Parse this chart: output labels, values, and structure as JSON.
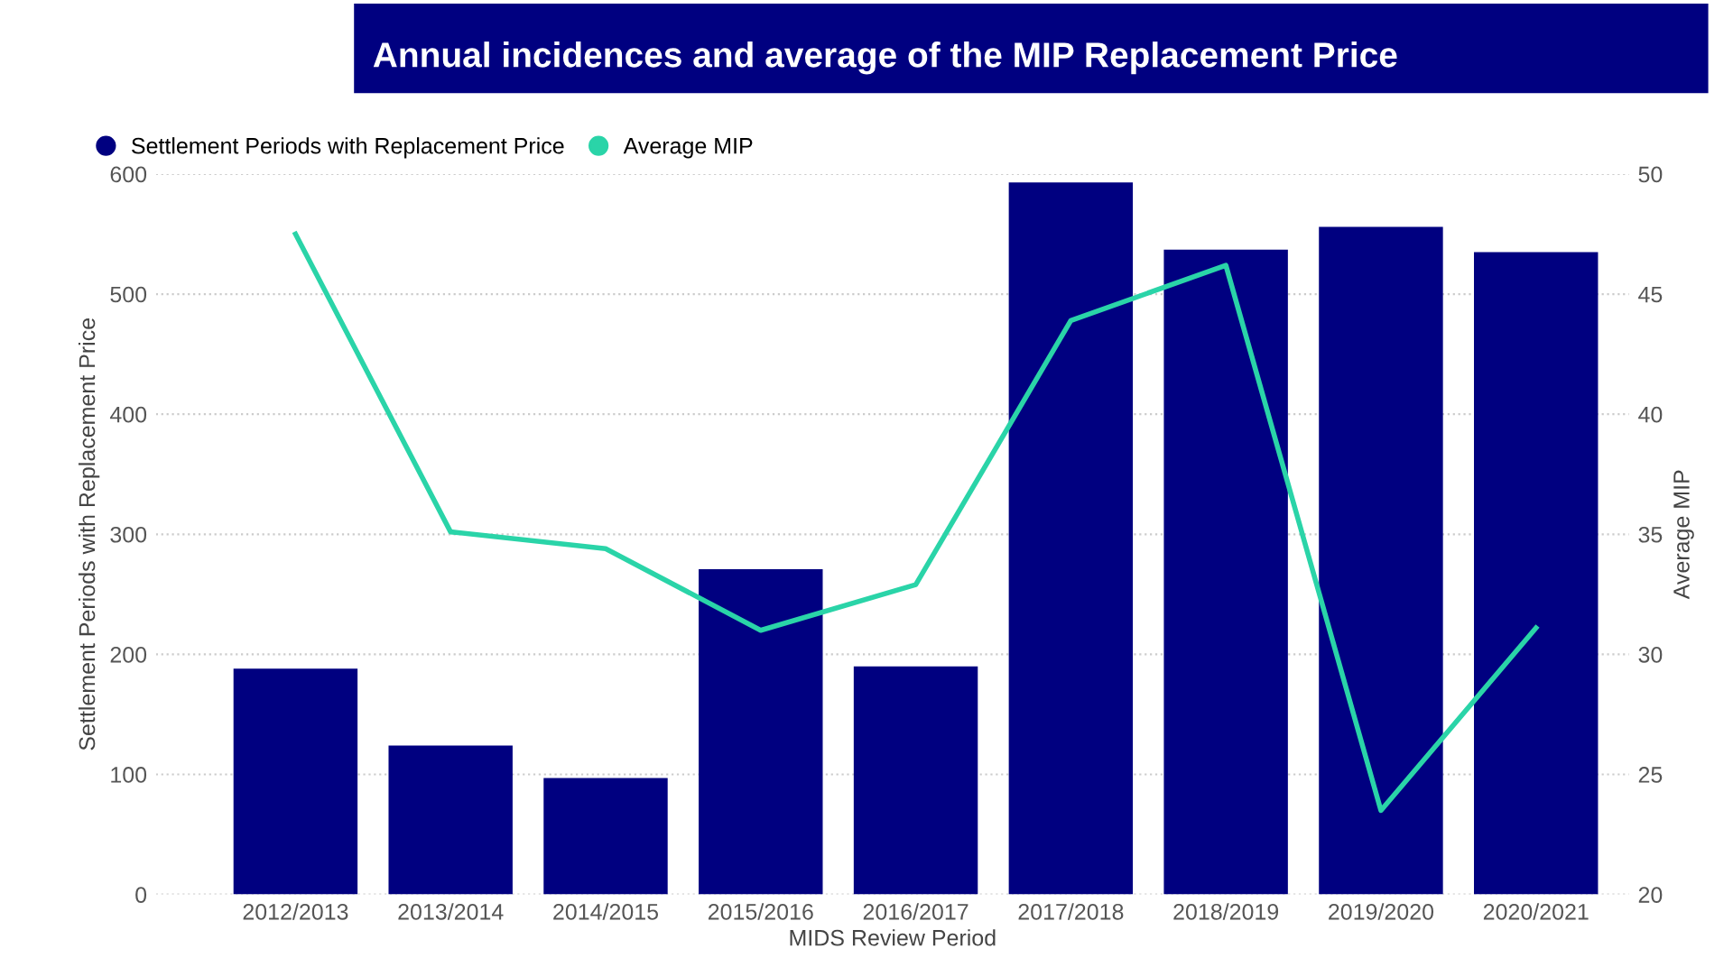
{
  "chart_data": {
    "type": "bar",
    "title": "Annual incidences and average of the MIP Replacement Price",
    "xlabel": "MIDS Review Period",
    "ylabel": "Settlement Periods with Replacement Price",
    "y2label": "Average MIP",
    "categories": [
      "2012/2013",
      "2013/2014",
      "2014/2015",
      "2015/2016",
      "2016/2017",
      "2017/2018",
      "2018/2019",
      "2019/2020",
      "2020/2021"
    ],
    "series": [
      {
        "name": "Settlement Periods with Replacement Price",
        "color": "#000080",
        "values": [
          188,
          124,
          97,
          271,
          190,
          593,
          537,
          556,
          535
        ]
      },
      {
        "name": "Average MIP",
        "type": "line",
        "axis": "y2",
        "color": "#2ad4a8",
        "values": [
          47.5,
          35.1,
          34.4,
          31.0,
          32.9,
          43.9,
          46.2,
          23.5,
          31.1
        ]
      }
    ],
    "ylim": [
      0,
      600
    ],
    "yticks": [
      0,
      100,
      200,
      300,
      400,
      500,
      600
    ],
    "y2lim": [
      20,
      50
    ],
    "y2ticks": [
      20,
      25,
      30,
      35,
      40,
      45,
      50
    ],
    "grid": "y",
    "legend": "top left",
    "marker": "none",
    "line_style": "solid"
  }
}
